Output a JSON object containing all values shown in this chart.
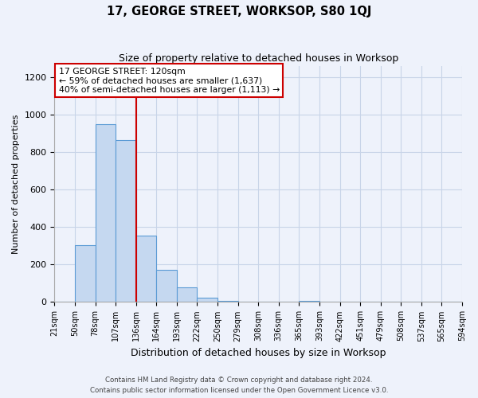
{
  "title": "17, GEORGE STREET, WORKSOP, S80 1QJ",
  "subtitle": "Size of property relative to detached houses in Worksop",
  "xlabel": "Distribution of detached houses by size in Worksop",
  "ylabel": "Number of detached properties",
  "bin_labels": [
    "21sqm",
    "50sqm",
    "78sqm",
    "107sqm",
    "136sqm",
    "164sqm",
    "193sqm",
    "222sqm",
    "250sqm",
    "279sqm",
    "308sqm",
    "336sqm",
    "365sqm",
    "393sqm",
    "422sqm",
    "451sqm",
    "479sqm",
    "508sqm",
    "537sqm",
    "565sqm",
    "594sqm"
  ],
  "bar_values": [
    0,
    305,
    950,
    865,
    355,
    170,
    80,
    25,
    5,
    0,
    0,
    0,
    8,
    0,
    0,
    0,
    0,
    0,
    0,
    0,
    0
  ],
  "bar_color": "#c5d8f0",
  "bar_edge_color": "#5b9bd5",
  "vline_pos": 4.0,
  "vline_color": "#cc0000",
  "annotation_text": "17 GEORGE STREET: 120sqm\n← 59% of detached houses are smaller (1,637)\n40% of semi-detached houses are larger (1,113) →",
  "annotation_box_color": "#ffffff",
  "annotation_box_edge": "#cc0000",
  "ylim": [
    0,
    1260
  ],
  "yticks": [
    0,
    200,
    400,
    600,
    800,
    1000,
    1200
  ],
  "footer_line1": "Contains HM Land Registry data © Crown copyright and database right 2024.",
  "footer_line2": "Contains public sector information licensed under the Open Government Licence v3.0.",
  "background_color": "#eef2fb",
  "grid_color": "#c8d4e8"
}
